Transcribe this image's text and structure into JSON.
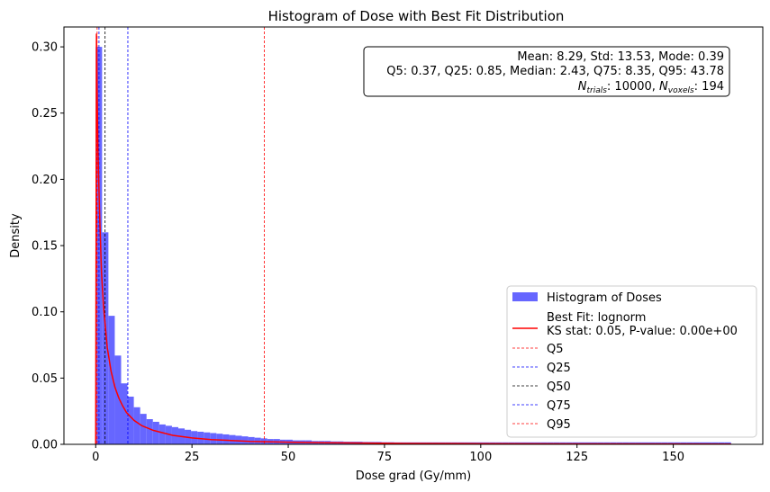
{
  "chart_data": {
    "type": "bar",
    "title": "Histogram of Dose with Best Fit Distribution",
    "xlabel": "Dose grad (Gy/mm)",
    "ylabel": "Density",
    "xlim": [
      -8.25,
      173.25
    ],
    "ylim": [
      0,
      0.315
    ],
    "xticks": [
      0,
      25,
      50,
      75,
      100,
      125,
      150
    ],
    "yticks": [
      0.0,
      0.05,
      0.1,
      0.15,
      0.2,
      0.25,
      0.3
    ],
    "xtick_labels": [
      "0",
      "25",
      "50",
      "75",
      "100",
      "125",
      "150"
    ],
    "ytick_labels": [
      "0.00",
      "0.05",
      "0.10",
      "0.15",
      "0.20",
      "0.25",
      "0.30"
    ],
    "grid": false,
    "legend_position": "lower-right",
    "histogram": {
      "name": "Histogram of Doses",
      "color": "#6666ff",
      "bin_start": 0,
      "bin_width": 1.65,
      "densities": [
        0.3,
        0.16,
        0.097,
        0.067,
        0.046,
        0.036,
        0.028,
        0.023,
        0.019,
        0.017,
        0.015,
        0.014,
        0.013,
        0.012,
        0.011,
        0.01,
        0.0095,
        0.009,
        0.0085,
        0.008,
        0.0075,
        0.007,
        0.0065,
        0.006,
        0.0055,
        0.005,
        0.0045,
        0.004,
        0.004,
        0.0035,
        0.0035,
        0.003,
        0.003,
        0.003,
        0.0025,
        0.0025,
        0.0025,
        0.0022,
        0.0022,
        0.002,
        0.002,
        0.002,
        0.0018,
        0.0018,
        0.0018,
        0.0016,
        0.0016,
        0.0015,
        0.0015,
        0.0015,
        0.0015,
        0.0015,
        0.0015,
        0.0015,
        0.0015,
        0.0015,
        0.0015,
        0.0015,
        0.0015,
        0.0015,
        0.0015,
        0.0015,
        0.0015,
        0.0015,
        0.0015,
        0.0015,
        0.0015,
        0.0015,
        0.0015,
        0.0015,
        0.0015,
        0.0015,
        0.0015,
        0.0015,
        0.0015,
        0.0015,
        0.0015,
        0.0015,
        0.0015,
        0.0015,
        0.0015,
        0.0015,
        0.0015,
        0.0015,
        0.0015,
        0.0015,
        0.0015,
        0.0015,
        0.0015,
        0.0015,
        0.0015,
        0.0015,
        0.0015,
        0.0015,
        0.0015,
        0.0015,
        0.0015,
        0.0015,
        0.0015,
        0.0015
      ]
    },
    "fit_curve": {
      "name": "Best Fit: lognorm",
      "name_line2": "KS stat: 0.05, P-value: 0.00e+00",
      "color": "#ff0000",
      "x": [
        0.0,
        0.2,
        0.4,
        0.6,
        1.0,
        1.5,
        2.0,
        3.0,
        4.0,
        5.0,
        6.0,
        7.0,
        8.0,
        10.0,
        12.0,
        15.0,
        20.0,
        25.0,
        30.0,
        40.0,
        50.0,
        60.0,
        80.0,
        100.0,
        130.0,
        165.0
      ],
      "y": [
        0.0,
        0.31,
        0.26,
        0.22,
        0.175,
        0.13,
        0.105,
        0.073,
        0.055,
        0.043,
        0.035,
        0.029,
        0.024,
        0.018,
        0.014,
        0.0105,
        0.0068,
        0.0048,
        0.0036,
        0.0022,
        0.0016,
        0.0012,
        0.0007,
        0.0005,
        0.0003,
        0.0002
      ]
    },
    "quantile_lines": [
      {
        "name": "Q5",
        "x": 0.37,
        "color": "#ff0000"
      },
      {
        "name": "Q25",
        "x": 0.85,
        "color": "#0000ff"
      },
      {
        "name": "Q50",
        "x": 2.43,
        "color": "#000000"
      },
      {
        "name": "Q75",
        "x": 8.35,
        "color": "#0000ff"
      },
      {
        "name": "Q95",
        "x": 43.78,
        "color": "#ff0000"
      }
    ],
    "stats_box": {
      "line1": "Mean: 8.29, Std: 13.53, Mode: 0.39",
      "line2": "Q5: 0.37, Q25: 0.85, Median: 2.43, Q75: 8.35, Q95: 43.78",
      "n_trials_label": "N",
      "n_trials_sub": "trials",
      "n_trials_value": ": 10000, ",
      "n_voxels_label": "N",
      "n_voxels_sub": "voxels",
      "n_voxels_value": ": 194"
    }
  }
}
